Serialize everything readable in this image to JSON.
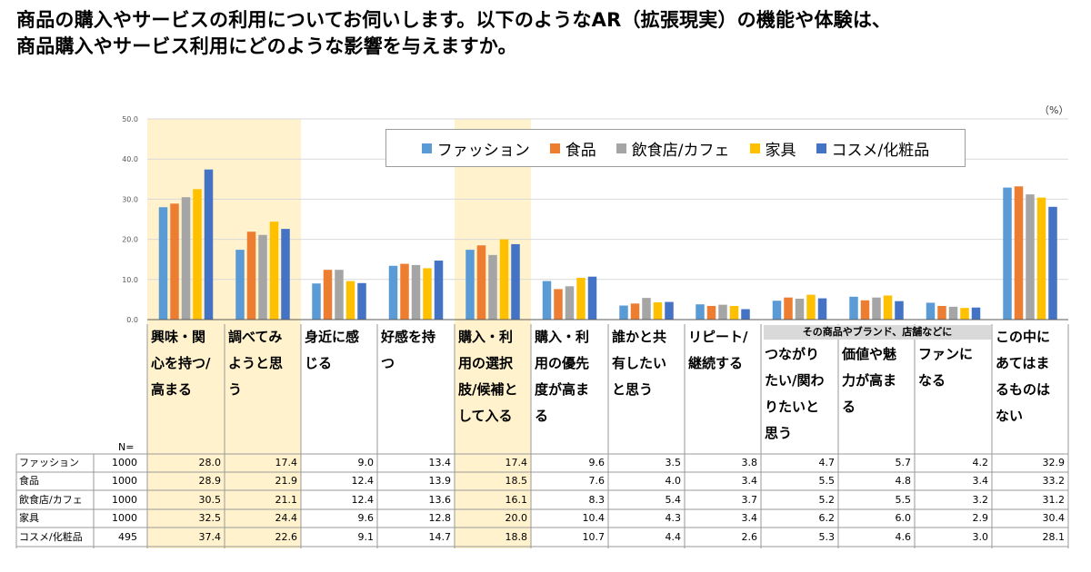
{
  "title": {
    "line1": "商品の購入やサービスの利用についてお伺いします。以下のようなAR（拡張現実）の機能や体験は、",
    "line2": "商品購入やサービス利用にどのような影響を与えますか。"
  },
  "unit_label": "（%）",
  "n_label": "N=",
  "group_label": "その商品やブランド、店舗などに",
  "columns": [
    "興味・関\n心を持つ/\n高まる",
    "調べてみ\nようと思\nう",
    "身近に感\nじる",
    "好感を持\nつ",
    "購入・利\n用の選択\n肢/候補と\nして入る",
    "購入・利\n用の優先\n度が高ま\nる",
    "誰かと共\n有したい\nと思う",
    "リピート/\n継続する",
    "つながり\nたい/関わ\nりたいと\n思う",
    "価値や魅\n力が高ま\nる",
    "ファンに\nなる",
    "この中に\nあてはま\nるものは\nない"
  ],
  "colors": {
    "highlight": "#fff2cc",
    "grid": "#d9d9d9",
    "axis": "#595959"
  },
  "chart_data": {
    "type": "bar",
    "title": "",
    "xlabel": "",
    "ylabel": "",
    "ylim": [
      0,
      50
    ],
    "yticks": [
      "0.0",
      "10.0",
      "20.0",
      "30.0",
      "40.0",
      "50.0"
    ],
    "grid": true,
    "legend_position": "top-center",
    "highlighted_categories": [
      0,
      1,
      4
    ],
    "categories": [
      "興味・関心を持つ/高まる",
      "調べてみようと思う",
      "身近に感じる",
      "好感を持つ",
      "購入・利用の選択肢/候補として入る",
      "購入・利用の優先度が高まる",
      "誰かと共有したいと思う",
      "リピート/継続する",
      "つながりたい/関わりたいと思う",
      "価値や魅力が高まる",
      "ファンになる",
      "この中にあてはまるものはない"
    ],
    "series": [
      {
        "name": "ファッション",
        "color": "#5b9bd5",
        "n": "1000",
        "values": [
          28.0,
          17.4,
          9.0,
          13.4,
          17.4,
          9.6,
          3.5,
          3.8,
          4.7,
          5.7,
          4.2,
          32.9
        ],
        "labels": [
          "28.0",
          "17.4",
          "9.0",
          "13.4",
          "17.4",
          "9.6",
          "3.5",
          "3.8",
          "4.7",
          "5.7",
          "4.2",
          "32.9"
        ]
      },
      {
        "name": "食品",
        "color": "#ed7d31",
        "n": "1000",
        "values": [
          28.9,
          21.9,
          12.4,
          13.9,
          18.5,
          7.6,
          4.0,
          3.4,
          5.5,
          4.8,
          3.4,
          33.2
        ],
        "labels": [
          "28.9",
          "21.9",
          "12.4",
          "13.9",
          "18.5",
          "7.6",
          "4.0",
          "3.4",
          "5.5",
          "4.8",
          "3.4",
          "33.2"
        ]
      },
      {
        "name": "飲食店/カフェ",
        "color": "#a5a5a5",
        "n": "1000",
        "values": [
          30.5,
          21.1,
          12.4,
          13.6,
          16.1,
          8.3,
          5.4,
          3.7,
          5.2,
          5.5,
          3.2,
          31.2
        ],
        "labels": [
          "30.5",
          "21.1",
          "12.4",
          "13.6",
          "16.1",
          "8.3",
          "5.4",
          "3.7",
          "5.2",
          "5.5",
          "3.2",
          "31.2"
        ]
      },
      {
        "name": "家具",
        "color": "#ffc000",
        "n": "1000",
        "values": [
          32.5,
          24.4,
          9.6,
          12.8,
          20.0,
          10.4,
          4.3,
          3.4,
          6.2,
          6.0,
          2.9,
          30.4
        ],
        "labels": [
          "32.5",
          "24.4",
          "9.6",
          "12.8",
          "20.0",
          "10.4",
          "4.3",
          "3.4",
          "6.2",
          "6.0",
          "2.9",
          "30.4"
        ]
      },
      {
        "name": "コスメ/化粧品",
        "color": "#4472c4",
        "n": "495",
        "values": [
          37.4,
          22.6,
          9.1,
          14.7,
          18.8,
          10.7,
          4.4,
          2.6,
          5.3,
          4.6,
          3.0,
          28.1
        ],
        "labels": [
          "37.4",
          "22.6",
          "9.1",
          "14.7",
          "18.8",
          "10.7",
          "4.4",
          "2.6",
          "5.3",
          "4.6",
          "3.0",
          "28.1"
        ]
      }
    ]
  }
}
